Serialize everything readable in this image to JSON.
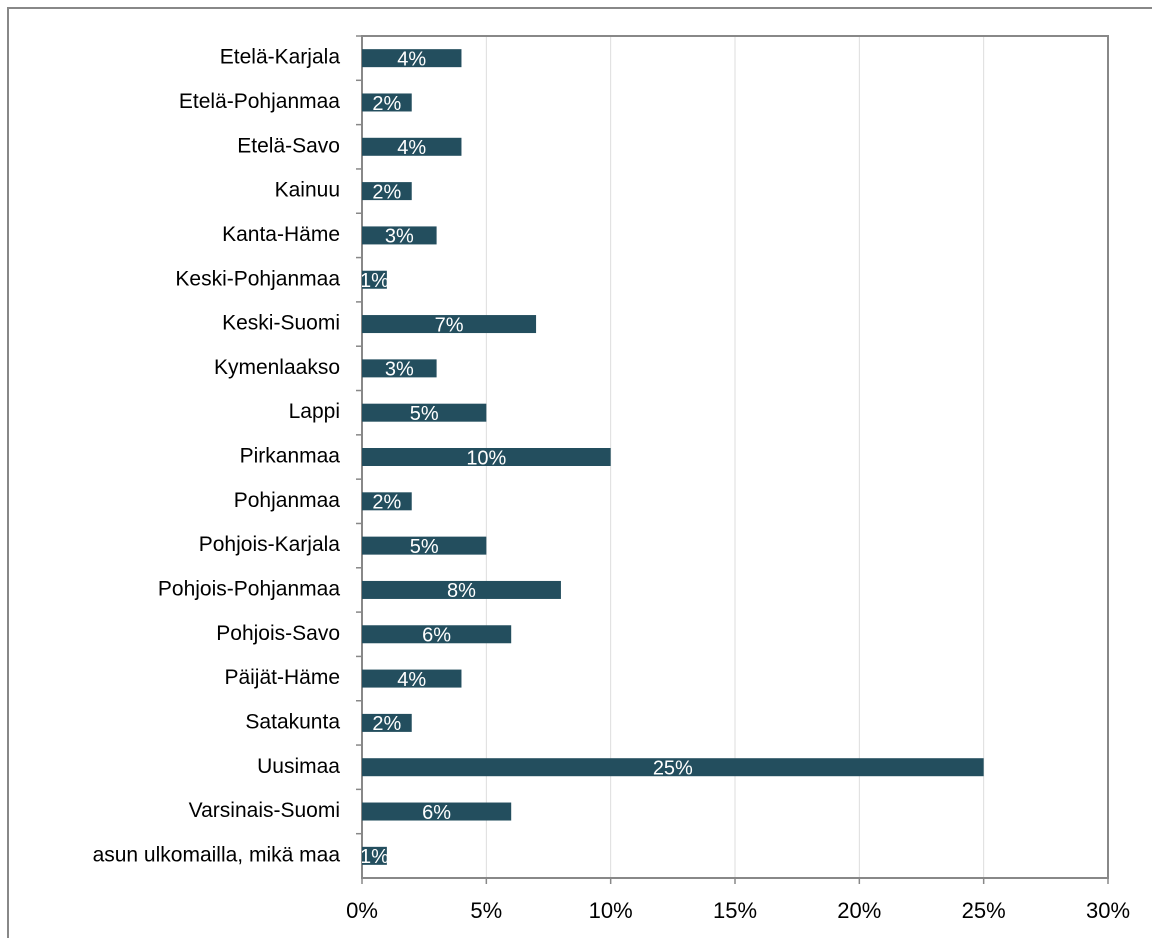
{
  "chart_data": {
    "type": "barh",
    "categories": [
      "Etelä-Karjala",
      "Etelä-Pohjanmaa",
      "Etelä-Savo",
      "Kainuu",
      "Kanta-Häme",
      "Keski-Pohjanmaa",
      "Keski-Suomi",
      "Kymenlaakso",
      "Lappi",
      "Pirkanmaa",
      "Pohjanmaa",
      "Pohjois-Karjala",
      "Pohjois-Pohjanmaa",
      "Pohjois-Savo",
      "Päijät-Häme",
      "Satakunta",
      "Uusimaa",
      "Varsinais-Suomi",
      "asun ulkomailla, mikä maa"
    ],
    "values": [
      4,
      2,
      4,
      2,
      3,
      1,
      7,
      3,
      5,
      10,
      2,
      5,
      8,
      6,
      4,
      2,
      25,
      6,
      1
    ],
    "value_labels": [
      "4%",
      "2%",
      "4%",
      "2%",
      "3%",
      "1%",
      "7%",
      "3%",
      "5%",
      "10%",
      "2%",
      "5%",
      "8%",
      "6%",
      "4%",
      "2%",
      "25%",
      "6%",
      "1%"
    ],
    "color": "#234e5e",
    "xlim": [
      0,
      30
    ],
    "xticks": [
      {
        "value": 0,
        "label": "0%"
      },
      {
        "value": 5,
        "label": "5%"
      },
      {
        "value": 10,
        "label": "10%"
      },
      {
        "value": 15,
        "label": "15%"
      },
      {
        "value": 20,
        "label": "20%"
      },
      {
        "value": 25,
        "label": "25%"
      },
      {
        "value": 30,
        "label": "30%"
      }
    ],
    "grid": true
  }
}
